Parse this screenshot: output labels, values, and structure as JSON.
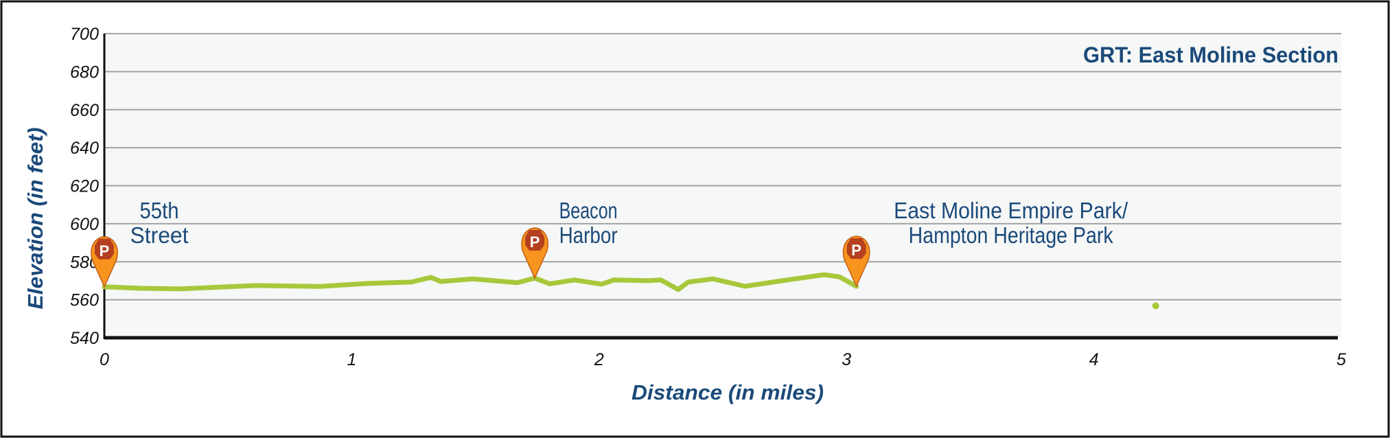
{
  "chart_data": {
    "type": "line",
    "title": "GRT: East Moline Section",
    "xlabel": "Distance (in miles)",
    "ylabel": "Elevation (in feet)",
    "xlim": [
      0,
      5
    ],
    "ylim": [
      540,
      700
    ],
    "xticks": [
      "0",
      "1",
      "2",
      "3",
      "4",
      "5"
    ],
    "yticks": [
      "540",
      "560",
      "580",
      "600",
      "620",
      "640",
      "660",
      "680",
      "700"
    ],
    "grid": true,
    "series": [
      {
        "name": "Elevation",
        "color": "#a7c83a",
        "x": [
          0.0,
          0.15,
          0.31,
          0.61,
          0.87,
          1.07,
          1.24,
          1.32,
          1.36,
          1.49,
          1.67,
          1.74,
          1.8,
          1.9,
          2.01,
          2.06,
          2.2,
          2.25,
          2.32,
          2.36,
          2.46,
          2.59,
          2.76,
          2.91,
          2.97,
          3.04
        ],
        "y": [
          566.8,
          566.0,
          565.7,
          567.5,
          567.0,
          568.6,
          569.3,
          571.8,
          569.6,
          571.0,
          569.0,
          571.4,
          568.4,
          570.4,
          568.2,
          570.4,
          570.0,
          570.4,
          565.4,
          569.3,
          571.0,
          567.1,
          570.4,
          573.2,
          572.1,
          567.1
        ]
      },
      {
        "name": "Isolated point",
        "color": "#a7c83a",
        "x": [
          4.25
        ],
        "y": [
          556.8
        ]
      }
    ],
    "annotations": [
      {
        "type": "parking",
        "icon": "parking-marker-icon",
        "symbol": "P",
        "x": 0.0,
        "y": 566.8,
        "lines": [
          "55th",
          "Street"
        ]
      },
      {
        "type": "parking",
        "icon": "parking-marker-icon",
        "symbol": "P",
        "x": 1.74,
        "y": 571.4,
        "lines": [
          "Beacon",
          "Harbor"
        ]
      },
      {
        "type": "parking",
        "icon": "parking-marker-icon",
        "symbol": "P",
        "x": 3.04,
        "y": 567.1,
        "lines": [
          "East Moline Empire Park/",
          "Hampton Heritage Park"
        ]
      }
    ],
    "colors": {
      "text": "#1b4a7a",
      "marker_fill": "#f7941d",
      "marker_badge": "#b5401f",
      "plot_bg": "#f6f7f7",
      "grid": "#a3a3a3"
    }
  }
}
